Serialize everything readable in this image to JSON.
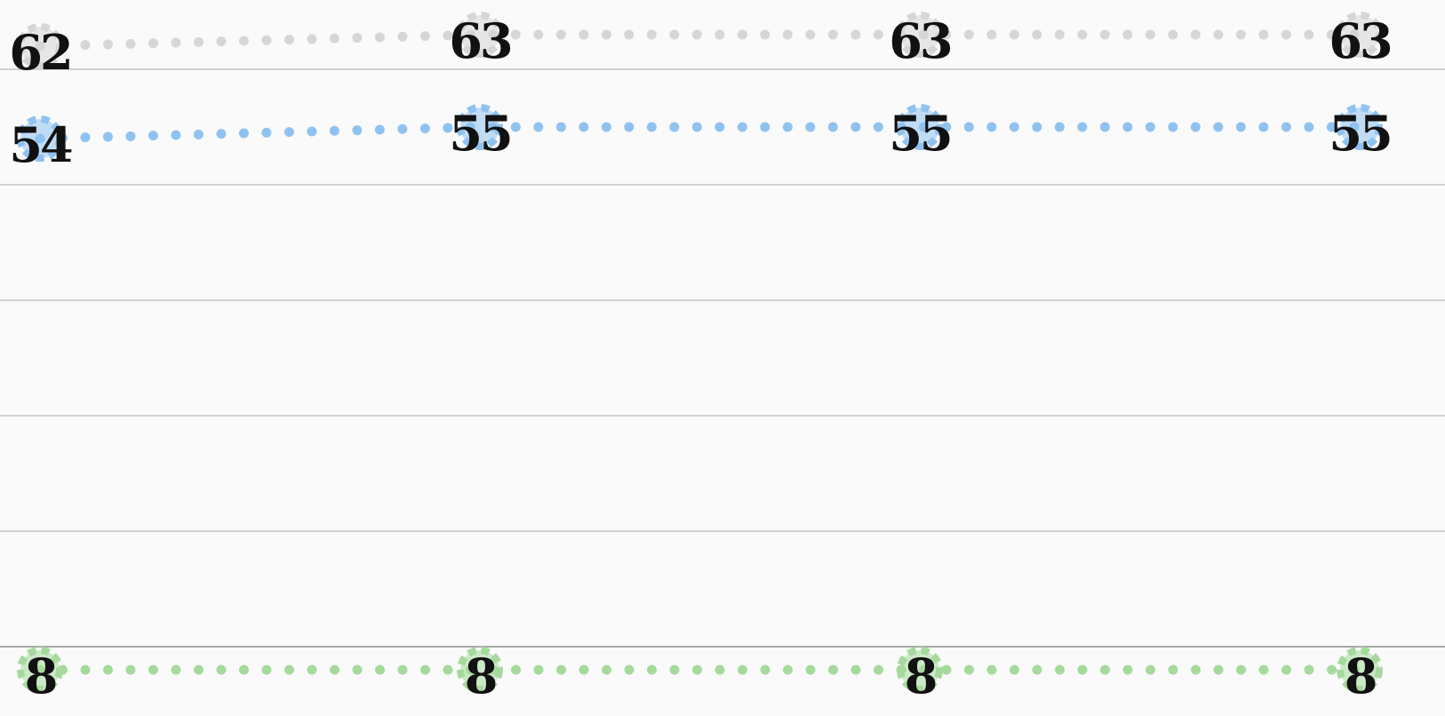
{
  "chart_data": {
    "type": "line",
    "categories": [
      null,
      null,
      null,
      null
    ],
    "series": [
      {
        "color": "#d6d6d6",
        "values": [
          62,
          63,
          63,
          63
        ]
      },
      {
        "color": "#90c2f0",
        "values": [
          54,
          55,
          55,
          55
        ]
      },
      {
        "color": "#a6da9c",
        "values": [
          8,
          8,
          8,
          8
        ]
      }
    ],
    "ylim": [
      4,
      66
    ],
    "yticks": [
      10,
      20,
      30,
      40,
      50,
      60
    ],
    "grid": true,
    "data_labels": true
  }
}
